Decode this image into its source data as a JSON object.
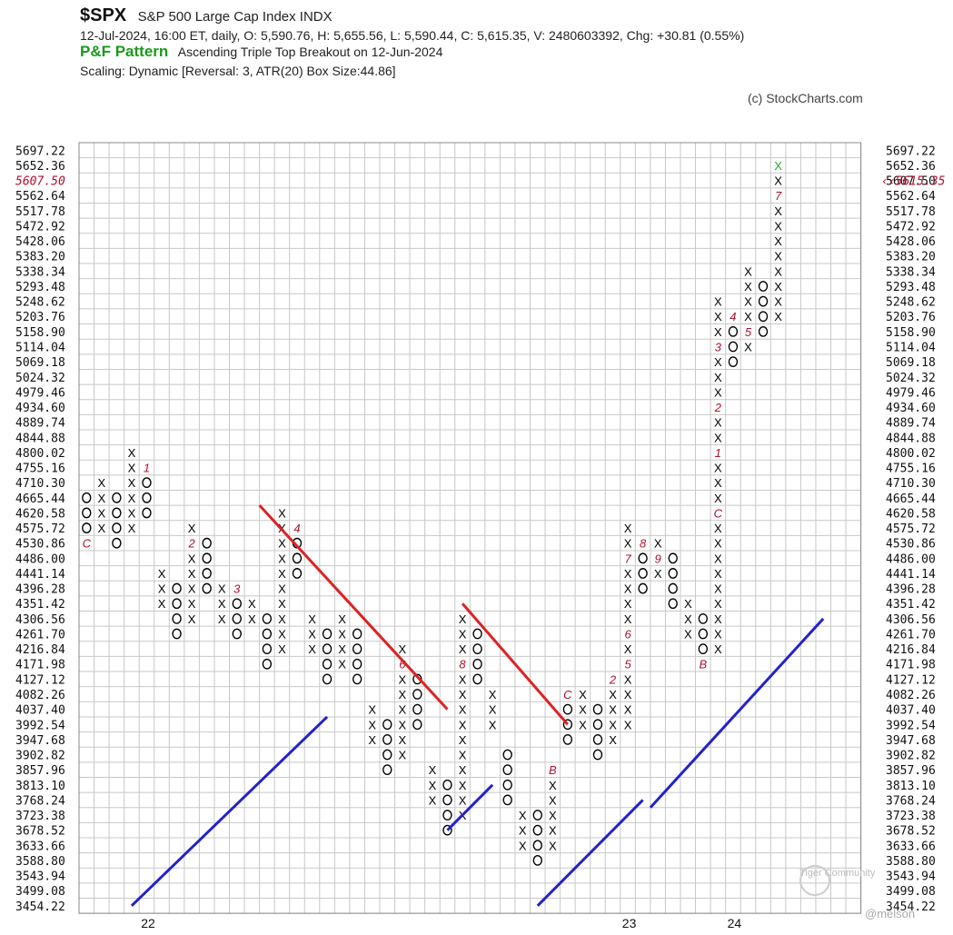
{
  "header": {
    "symbol": "$SPX",
    "index_name": "S&P 500 Large Cap Index  INDX",
    "quote": "12-Jul-2024, 16:00 ET, daily, O: 5,590.76, H: 5,655.56, L: 5,590.44, C: 5,615.35, V: 2480603392, Chg: +30.81 (0.55%)",
    "pattern_title": "P&F Pattern",
    "pattern_text": "Ascending Triple Top Breakout on 12-Jun-2024",
    "scaling": "Scaling: Dynamic [Reversal: 3, ATR(20) Box Size:44.86]",
    "copyright": "(c) StockCharts.com"
  },
  "watermark": {
    "brand": "Tiger Community",
    "user": "@melson"
  },
  "chart_data": {
    "type": "point-and-figure",
    "box_size": 44.86,
    "reversal": 3,
    "price_levels": [
      "5697.22",
      "5652.36",
      "5607.50",
      "5562.64",
      "5517.78",
      "5472.92",
      "5428.06",
      "5383.20",
      "5338.34",
      "5293.48",
      "5248.62",
      "5203.76",
      "5158.90",
      "5114.04",
      "5069.18",
      "5024.32",
      "4979.46",
      "4934.60",
      "4889.74",
      "4844.88",
      "4800.02",
      "4755.16",
      "4710.30",
      "4665.44",
      "4620.58",
      "4575.72",
      "4530.86",
      "4486.00",
      "4441.14",
      "4396.28",
      "4351.42",
      "4306.56",
      "4261.70",
      "4216.84",
      "4171.98",
      "4127.12",
      "4082.26",
      "4037.40",
      "3992.54",
      "3947.68",
      "3902.82",
      "3857.96",
      "3813.10",
      "3768.24",
      "3723.38",
      "3678.52",
      "3633.66",
      "3588.80",
      "3543.94",
      "3499.08",
      "3454.22"
    ],
    "highlighted_left_level": "5607.50",
    "last_price_label": "5615.35",
    "year_labels": [
      {
        "label": "22",
        "column": 4
      },
      {
        "label": "23",
        "column": 36
      },
      {
        "label": "24",
        "column": 43
      }
    ],
    "columns": [
      {
        "type": "O",
        "top": "4665.44",
        "marks": {
          "4530.86": "C"
        }
      },
      {
        "type": "X",
        "top": "4710.30"
      },
      {
        "type": "O",
        "top": "4665.44"
      },
      {
        "type": "X",
        "top": "4800.02"
      },
      {
        "type": "O",
        "top": "4755.16",
        "marks": {
          "4755.16": "1"
        }
      },
      {
        "type": "X",
        "top": "4441.14"
      },
      {
        "type": "O",
        "top": "4396.28"
      },
      {
        "type": "X",
        "top": "4575.72",
        "marks": {
          "4530.86": "2"
        }
      },
      {
        "type": "O",
        "top": "4530.86"
      },
      {
        "type": "X",
        "top": "4396.28"
      },
      {
        "type": "O",
        "top": "4396.28",
        "marks": {
          "4396.28": "3"
        }
      },
      {
        "type": "X",
        "top": "4351.42"
      },
      {
        "type": "O",
        "top": "4306.56"
      },
      {
        "type": "X",
        "top": "4620.58"
      },
      {
        "type": "O",
        "top": "4575.72",
        "marks": {
          "4575.72": "4"
        }
      },
      {
        "type": "X",
        "top": "4306.56"
      },
      {
        "type": "O",
        "top": "4261.70"
      },
      {
        "type": "X",
        "top": "4306.56"
      },
      {
        "type": "O",
        "top": "4261.70",
        "marks": {
          "4082.26": "5"
        }
      },
      {
        "type": "X",
        "top": "4037.40"
      },
      {
        "type": "O",
        "top": "3992.54"
      },
      {
        "type": "X",
        "top": "4216.84",
        "marks": {
          "4171.98": "6"
        }
      },
      {
        "type": "O",
        "top": "4127.12",
        "marks": {
          "3813.10": "7"
        }
      },
      {
        "type": "X",
        "top": "3857.96"
      },
      {
        "type": "O",
        "top": "3813.10"
      },
      {
        "type": "X",
        "top": "4306.56",
        "marks": {
          "4171.98": "8"
        }
      },
      {
        "type": "O",
        "top": "4261.70",
        "marks": {
          "3947.68": "9"
        }
      },
      {
        "type": "X",
        "top": "4082.26"
      },
      {
        "type": "O",
        "top": "3902.82",
        "marks": {
          "3633.66": "A"
        }
      },
      {
        "type": "X",
        "top": "3723.38"
      },
      {
        "type": "O",
        "top": "3723.38"
      },
      {
        "type": "X",
        "top": "3857.96",
        "marks": {
          "3857.96": "B"
        }
      },
      {
        "type": "O",
        "top": "4082.26",
        "marks": {
          "4082.26": "C"
        }
      },
      {
        "type": "X",
        "top": "4082.26"
      },
      {
        "type": "O",
        "top": "4037.40"
      },
      {
        "type": "X",
        "top": "4127.12",
        "marks": {
          "4127.12": "2",
          "3902.82": "3",
          "3813.10": "1"
        }
      },
      {
        "type": "X",
        "top": "4575.72",
        "marks": {
          "4486.00": "7",
          "4261.70": "6",
          "4171.98": "5"
        }
      },
      {
        "type": "O",
        "top": "4530.86",
        "marks": {
          "4530.86": "8"
        }
      },
      {
        "type": "X",
        "top": "4530.86",
        "marks": {
          "4486.00": "9"
        }
      },
      {
        "type": "O",
        "top": "4486.00",
        "marks": {
          "4216.84": "A"
        }
      },
      {
        "type": "X",
        "top": "4351.42"
      },
      {
        "type": "O",
        "top": "4306.56",
        "marks": {
          "4171.98": "B"
        }
      },
      {
        "type": "X",
        "top": "5248.62",
        "marks": {
          "5114.04": "3",
          "4934.60": "2",
          "4800.02": "1",
          "4620.58": "C"
        }
      },
      {
        "type": "O",
        "top": "5203.76",
        "marks": {
          "5203.76": "4"
        }
      },
      {
        "type": "X",
        "top": "5338.34",
        "marks": {
          "5158.90": "5"
        }
      },
      {
        "type": "O",
        "top": "5293.48"
      },
      {
        "type": "X",
        "top": "5652.36",
        "marks": {
          "5562.64": "7"
        }
      }
    ],
    "trend_lines": [
      {
        "kind": "resistance",
        "color": "#dd2222"
      },
      {
        "kind": "resistance",
        "color": "#dd2222"
      },
      {
        "kind": "support",
        "color": "#2222cc"
      },
      {
        "kind": "support",
        "color": "#2222cc"
      },
      {
        "kind": "support",
        "color": "#2222cc"
      },
      {
        "kind": "support",
        "color": "#2222cc"
      }
    ],
    "colors": {
      "mark": "#b01030",
      "x": "#000000",
      "o": "#000000",
      "last_x": "#22aa22",
      "grid": "#c8c8c8"
    }
  }
}
